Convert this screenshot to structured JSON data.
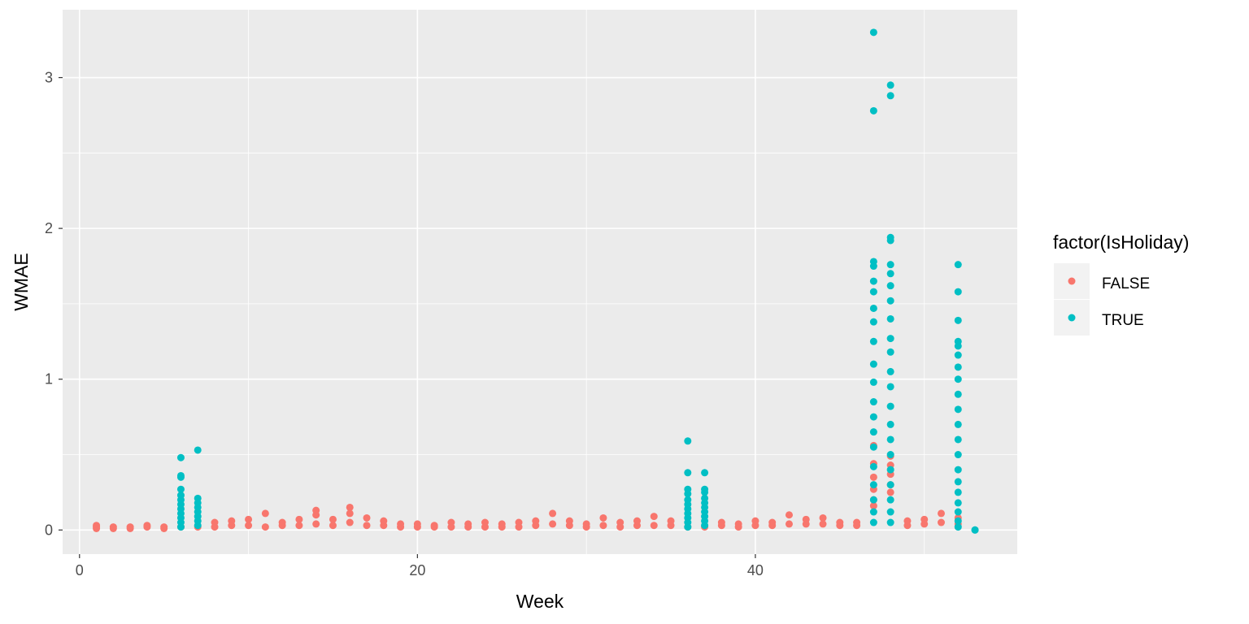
{
  "chart_data": {
    "type": "scatter",
    "xlabel": "Week",
    "ylabel": "WMAE",
    "xlim": [
      -1,
      55.5
    ],
    "ylim": [
      -0.16,
      3.45
    ],
    "x_ticks": [
      0,
      20,
      40
    ],
    "y_ticks": [
      0,
      1,
      2,
      3
    ],
    "grid": true,
    "legend": {
      "title": "factor(IsHoliday)",
      "placement": "right",
      "entries": [
        "FALSE",
        "TRUE"
      ]
    },
    "colors": {
      "FALSE": "#F8766D",
      "TRUE": "#00BFC4",
      "panel": "#EBEBEB",
      "grid": "#FFFFFF"
    },
    "series": [
      {
        "name": "FALSE",
        "points": [
          [
            1,
            0.02
          ],
          [
            1,
            0.01
          ],
          [
            1,
            0.03
          ],
          [
            2,
            0.02
          ],
          [
            2,
            0.01
          ],
          [
            3,
            0.02
          ],
          [
            3,
            0.01
          ],
          [
            4,
            0.02
          ],
          [
            4,
            0.03
          ],
          [
            5,
            0.02
          ],
          [
            5,
            0.01
          ],
          [
            6,
            0.02
          ],
          [
            7,
            0.02
          ],
          [
            8,
            0.02
          ],
          [
            8,
            0.05
          ],
          [
            9,
            0.03
          ],
          [
            9,
            0.06
          ],
          [
            10,
            0.03
          ],
          [
            10,
            0.07
          ],
          [
            11,
            0.02
          ],
          [
            11,
            0.11
          ],
          [
            12,
            0.03
          ],
          [
            12,
            0.05
          ],
          [
            13,
            0.03
          ],
          [
            13,
            0.07
          ],
          [
            14,
            0.04
          ],
          [
            14,
            0.1
          ],
          [
            14,
            0.13
          ],
          [
            15,
            0.03
          ],
          [
            15,
            0.07
          ],
          [
            16,
            0.05
          ],
          [
            16,
            0.11
          ],
          [
            16,
            0.15
          ],
          [
            17,
            0.03
          ],
          [
            17,
            0.08
          ],
          [
            18,
            0.03
          ],
          [
            18,
            0.06
          ],
          [
            19,
            0.02
          ],
          [
            19,
            0.04
          ],
          [
            20,
            0.02
          ],
          [
            20,
            0.04
          ],
          [
            21,
            0.02
          ],
          [
            21,
            0.03
          ],
          [
            22,
            0.02
          ],
          [
            22,
            0.05
          ],
          [
            23,
            0.02
          ],
          [
            23,
            0.04
          ],
          [
            24,
            0.02
          ],
          [
            24,
            0.05
          ],
          [
            25,
            0.02
          ],
          [
            25,
            0.04
          ],
          [
            26,
            0.02
          ],
          [
            26,
            0.05
          ],
          [
            27,
            0.03
          ],
          [
            27,
            0.06
          ],
          [
            28,
            0.04
          ],
          [
            28,
            0.11
          ],
          [
            29,
            0.03
          ],
          [
            29,
            0.06
          ],
          [
            30,
            0.02
          ],
          [
            30,
            0.04
          ],
          [
            31,
            0.03
          ],
          [
            31,
            0.08
          ],
          [
            32,
            0.02
          ],
          [
            32,
            0.05
          ],
          [
            33,
            0.03
          ],
          [
            33,
            0.06
          ],
          [
            34,
            0.03
          ],
          [
            34,
            0.09
          ],
          [
            35,
            0.03
          ],
          [
            35,
            0.06
          ],
          [
            36,
            0.02
          ],
          [
            37,
            0.02
          ],
          [
            38,
            0.03
          ],
          [
            38,
            0.05
          ],
          [
            39,
            0.02
          ],
          [
            39,
            0.04
          ],
          [
            40,
            0.03
          ],
          [
            40,
            0.06
          ],
          [
            41,
            0.03
          ],
          [
            41,
            0.05
          ],
          [
            42,
            0.04
          ],
          [
            42,
            0.1
          ],
          [
            43,
            0.04
          ],
          [
            43,
            0.07
          ],
          [
            44,
            0.04
          ],
          [
            44,
            0.08
          ],
          [
            45,
            0.03
          ],
          [
            45,
            0.05
          ],
          [
            46,
            0.03
          ],
          [
            46,
            0.05
          ],
          [
            47,
            0.2
          ],
          [
            47,
            0.16
          ],
          [
            47,
            0.27
          ],
          [
            47,
            0.35
          ],
          [
            47,
            0.44
          ],
          [
            47,
            0.56
          ],
          [
            48,
            0.25
          ],
          [
            48,
            0.3
          ],
          [
            48,
            0.37
          ],
          [
            48,
            0.43
          ],
          [
            48,
            0.49
          ],
          [
            49,
            0.03
          ],
          [
            49,
            0.06
          ],
          [
            50,
            0.04
          ],
          [
            50,
            0.07
          ],
          [
            51,
            0.05
          ],
          [
            51,
            0.11
          ],
          [
            52,
            0.04
          ],
          [
            52,
            0.08
          ]
        ]
      },
      {
        "name": "TRUE",
        "points": [
          [
            6,
            0.02
          ],
          [
            6,
            0.05
          ],
          [
            6,
            0.08
          ],
          [
            6,
            0.11
          ],
          [
            6,
            0.14
          ],
          [
            6,
            0.17
          ],
          [
            6,
            0.2
          ],
          [
            6,
            0.23
          ],
          [
            6,
            0.27
          ],
          [
            6,
            0.35
          ],
          [
            6,
            0.36
          ],
          [
            6,
            0.48
          ],
          [
            7,
            0.03
          ],
          [
            7,
            0.06
          ],
          [
            7,
            0.09
          ],
          [
            7,
            0.12
          ],
          [
            7,
            0.15
          ],
          [
            7,
            0.18
          ],
          [
            7,
            0.21
          ],
          [
            7,
            0.53
          ],
          [
            36,
            0.02
          ],
          [
            36,
            0.05
          ],
          [
            36,
            0.08
          ],
          [
            36,
            0.11
          ],
          [
            36,
            0.14
          ],
          [
            36,
            0.17
          ],
          [
            36,
            0.2
          ],
          [
            36,
            0.24
          ],
          [
            36,
            0.27
          ],
          [
            36,
            0.38
          ],
          [
            36,
            0.59
          ],
          [
            37,
            0.03
          ],
          [
            37,
            0.06
          ],
          [
            37,
            0.09
          ],
          [
            37,
            0.12
          ],
          [
            37,
            0.15
          ],
          [
            37,
            0.18
          ],
          [
            37,
            0.21
          ],
          [
            37,
            0.25
          ],
          [
            37,
            0.27
          ],
          [
            37,
            0.38
          ],
          [
            47,
            0.05
          ],
          [
            47,
            0.12
          ],
          [
            47,
            0.2
          ],
          [
            47,
            0.3
          ],
          [
            47,
            0.42
          ],
          [
            47,
            0.55
          ],
          [
            47,
            0.65
          ],
          [
            47,
            0.75
          ],
          [
            47,
            0.85
          ],
          [
            47,
            0.98
          ],
          [
            47,
            1.1
          ],
          [
            47,
            1.25
          ],
          [
            47,
            1.38
          ],
          [
            47,
            1.47
          ],
          [
            47,
            1.58
          ],
          [
            47,
            1.65
          ],
          [
            47,
            1.75
          ],
          [
            47,
            1.78
          ],
          [
            47,
            2.78
          ],
          [
            47,
            3.3
          ],
          [
            48,
            0.05
          ],
          [
            48,
            0.12
          ],
          [
            48,
            0.2
          ],
          [
            48,
            0.3
          ],
          [
            48,
            0.4
          ],
          [
            48,
            0.5
          ],
          [
            48,
            0.6
          ],
          [
            48,
            0.7
          ],
          [
            48,
            0.82
          ],
          [
            48,
            0.95
          ],
          [
            48,
            1.05
          ],
          [
            48,
            1.18
          ],
          [
            48,
            1.27
          ],
          [
            48,
            1.4
          ],
          [
            48,
            1.52
          ],
          [
            48,
            1.62
          ],
          [
            48,
            1.7
          ],
          [
            48,
            1.76
          ],
          [
            48,
            1.92
          ],
          [
            48,
            1.94
          ],
          [
            48,
            2.88
          ],
          [
            48,
            2.95
          ],
          [
            52,
            0.02
          ],
          [
            52,
            0.06
          ],
          [
            52,
            0.12
          ],
          [
            52,
            0.18
          ],
          [
            52,
            0.25
          ],
          [
            52,
            0.32
          ],
          [
            52,
            0.4
          ],
          [
            52,
            0.5
          ],
          [
            52,
            0.6
          ],
          [
            52,
            0.7
          ],
          [
            52,
            0.8
          ],
          [
            52,
            0.9
          ],
          [
            52,
            1.0
          ],
          [
            52,
            1.08
          ],
          [
            52,
            1.16
          ],
          [
            52,
            1.22
          ],
          [
            52,
            1.25
          ],
          [
            52,
            1.39
          ],
          [
            52,
            1.58
          ],
          [
            52,
            1.76
          ],
          [
            53,
            0.0
          ],
          [
            53,
            0.0
          ]
        ]
      }
    ]
  }
}
